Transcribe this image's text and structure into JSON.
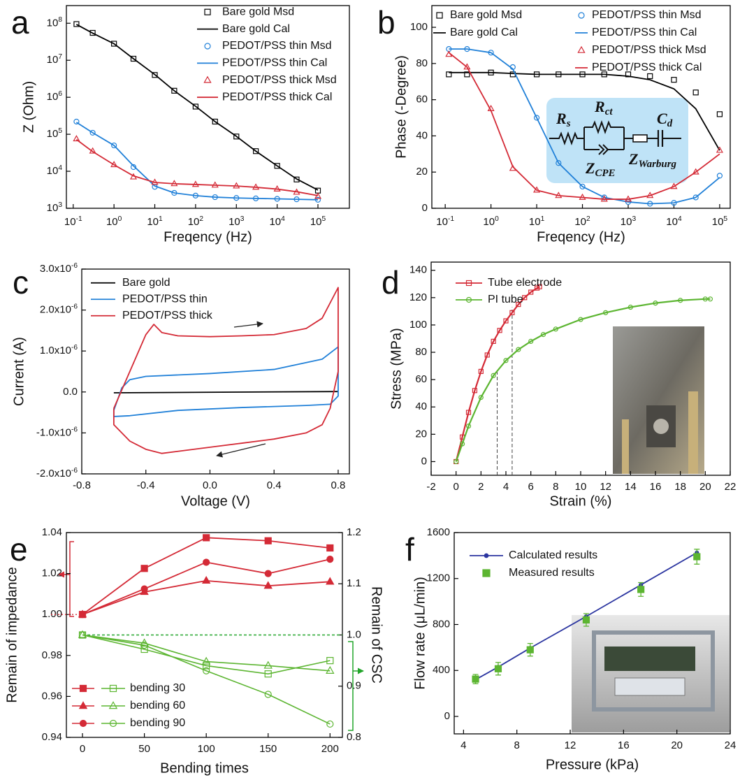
{
  "chart_data": [
    {
      "type": "line",
      "panel": "a",
      "xlabel": "Freqency (Hz)",
      "ylabel": "Z (Ohm)",
      "xscale": "log",
      "yscale": "log",
      "xlim": [
        0.068,
        590000
      ],
      "ylim": [
        1000,
        300000000
      ],
      "xticks": [
        {
          "value": 0.1,
          "label": "10^-1"
        },
        {
          "value": 1,
          "label": "10^0"
        },
        {
          "value": 10,
          "label": "10^1"
        },
        {
          "value": 100,
          "label": "10^2"
        },
        {
          "value": 1000,
          "label": "10^3"
        },
        {
          "value": 10000,
          "label": "10^4"
        },
        {
          "value": 100000,
          "label": "10^5"
        }
      ],
      "yticks": [
        {
          "value": 1000,
          "label": "10^3"
        },
        {
          "value": 10000,
          "label": "10^4"
        },
        {
          "value": 100000,
          "label": "10^5"
        },
        {
          "value": 1000000,
          "label": "10^6"
        },
        {
          "value": 10000000,
          "label": "10^7"
        },
        {
          "value": 100000000,
          "label": "10^8"
        }
      ],
      "legend": "upper right",
      "x": [
        0.12,
        0.3,
        1,
        3,
        10,
        30,
        100,
        300,
        1000,
        3000,
        10000,
        30000,
        100000
      ],
      "series": [
        {
          "name": "Bare gold Msd",
          "color": "#000000",
          "marker": "square",
          "values": [
            95000000,
            55000000,
            28000000,
            11000000,
            4000000,
            1500000,
            560000,
            220000,
            87000,
            35000,
            14000,
            6000,
            3000
          ]
        },
        {
          "name": "Bare gold Cal",
          "color": "#000000",
          "line": true,
          "values": [
            93000000,
            54000000,
            28000000,
            11000000,
            4100000,
            1500000,
            570000,
            220000,
            88000,
            35000,
            14000,
            6200,
            3100
          ]
        },
        {
          "name": "PEDOT/PSS thin Msd",
          "color": "#2080d8",
          "marker": "circle",
          "values": [
            220000,
            110000,
            50000,
            13000,
            3800,
            2600,
            2200,
            2000,
            1900,
            1850,
            1800,
            1750,
            1700
          ]
        },
        {
          "name": "PEDOT/PSS thin Cal",
          "color": "#2080d8",
          "line": true,
          "values": [
            210000,
            110000,
            50000,
            14000,
            4000,
            2600,
            2200,
            2000,
            1900,
            1850,
            1800,
            1750,
            1700
          ]
        },
        {
          "name": "PEDOT/PSS thick Msd",
          "color": "#d42a36",
          "marker": "triangle",
          "values": [
            75000,
            35000,
            15000,
            7000,
            5000,
            4600,
            4400,
            4200,
            4000,
            3700,
            3300,
            2700,
            2100
          ]
        },
        {
          "name": "PEDOT/PSS thick Cal",
          "color": "#d42a36",
          "line": true,
          "values": [
            72000,
            34000,
            15000,
            7500,
            5000,
            4600,
            4400,
            4200,
            4000,
            3700,
            3300,
            2800,
            2200
          ]
        }
      ]
    },
    {
      "type": "line",
      "panel": "b",
      "xlabel": "Freqency (Hz)",
      "ylabel": "Phase (-Degree)",
      "xscale": "log",
      "xlim": [
        0.051,
        170000
      ],
      "ylim": [
        0,
        112
      ],
      "xticks": [
        {
          "value": 0.1,
          "label": "10^-1"
        },
        {
          "value": 1,
          "label": "10^0"
        },
        {
          "value": 10,
          "label": "10^1"
        },
        {
          "value": 100,
          "label": "10^2"
        },
        {
          "value": 1000,
          "label": "10^3"
        },
        {
          "value": 10000,
          "label": "10^4"
        },
        {
          "value": 100000,
          "label": "10^5"
        }
      ],
      "yticks": [
        0,
        20,
        40,
        60,
        80,
        100
      ],
      "legend": "upper right",
      "annotations": [
        "R_s",
        "R_ct",
        "C_d",
        "Z_CPE",
        "Z_Warburg"
      ],
      "x": [
        0.12,
        0.3,
        1,
        3,
        10,
        30,
        100,
        300,
        1000,
        3000,
        10000,
        30000,
        100000
      ],
      "series": [
        {
          "name": "Bare gold Msd",
          "color": "#000000",
          "marker": "square",
          "values": [
            74,
            74,
            75,
            74,
            74,
            74,
            74,
            74,
            74,
            73,
            71,
            64,
            52
          ]
        },
        {
          "name": "Bare gold Cal",
          "color": "#000000",
          "line": true,
          "values": [
            75,
            75,
            75,
            74.5,
            74,
            74,
            74,
            74,
            73,
            71,
            66,
            55,
            32
          ]
        },
        {
          "name": "PEDOT/PSS thin Msd",
          "color": "#2080d8",
          "marker": "circle",
          "values": [
            88,
            88,
            86,
            78,
            50,
            25,
            12,
            6,
            3.5,
            2.5,
            3,
            6,
            18
          ]
        },
        {
          "name": "PEDOT/PSS thin Cal",
          "color": "#2080d8",
          "line": true,
          "values": [
            88,
            88,
            86,
            77,
            50,
            25,
            12,
            6,
            3.5,
            2.5,
            3,
            6,
            17
          ]
        },
        {
          "name": "PEDOT/PSS thick Msd",
          "color": "#d42a36",
          "marker": "triangle",
          "values": [
            85,
            78,
            55,
            22,
            10,
            7,
            6,
            5,
            5,
            7,
            12,
            20,
            32
          ]
        },
        {
          "name": "PEDOT/PSS thick Cal",
          "color": "#d42a36",
          "line": true,
          "values": [
            86,
            78,
            54,
            23,
            10,
            7,
            6,
            5,
            5,
            7,
            12,
            20,
            30
          ]
        }
      ]
    },
    {
      "type": "line",
      "panel": "c",
      "xlabel": "Voltage (V)",
      "ylabel": "Current (A)",
      "xlim": [
        -0.8,
        0.87
      ],
      "ylim": [
        -2e-06,
        3e-06
      ],
      "xticks": [
        -0.8,
        -0.4,
        {
          "value": 0,
          "label": "0.0"
        },
        0.4,
        0.8
      ],
      "yticks": [
        {
          "value": -2e-06,
          "label": "-2.0x10^-6"
        },
        {
          "value": -1e-06,
          "label": "-1.0x10^-6"
        },
        {
          "value": 0,
          "label": "0.0"
        },
        {
          "value": 1e-06,
          "label": "1.0x10^-6"
        },
        {
          "value": 2e-06,
          "label": "2.0x10^-6"
        },
        {
          "value": 3e-06,
          "label": "3.0x10^-6"
        }
      ],
      "legend": "upper left",
      "series": [
        {
          "name": "Bare gold",
          "color": "#000000",
          "line": true,
          "x": [
            -0.6,
            0.8
          ],
          "values": [
            -2e-08,
            1e-08
          ]
        },
        {
          "name": "PEDOT/PSS thin",
          "color": "#2080d8",
          "line": true,
          "x": [
            -0.6,
            -0.55,
            -0.5,
            -0.4,
            0,
            0.4,
            0.7,
            0.8,
            0.8,
            0.75,
            0.6,
            0.2,
            -0.2,
            -0.5,
            -0.6,
            -0.6
          ],
          "values": [
            -4.5e-07,
            1e-07,
            3e-07,
            3.8e-07,
            4.5e-07,
            5.5e-07,
            8e-07,
            1.1e-06,
            -1e-07,
            -3e-07,
            -3.3e-07,
            -3.8e-07,
            -4.5e-07,
            -5.8e-07,
            -6e-07,
            -4.5e-07
          ]
        },
        {
          "name": "PEDOT/PSS thick",
          "color": "#d42a36",
          "line": true,
          "x": [
            -0.6,
            -0.5,
            -0.4,
            -0.35,
            -0.3,
            -0.2,
            0,
            0.2,
            0.4,
            0.6,
            0.7,
            0.8,
            0.8,
            0.75,
            0.7,
            0.6,
            0.4,
            0.2,
            0,
            -0.2,
            -0.3,
            -0.4,
            -0.5,
            -0.6,
            -0.6
          ],
          "values": [
            -4e-07,
            5e-07,
            1.4e-06,
            1.65e-06,
            1.45e-06,
            1.37e-06,
            1.35e-06,
            1.37e-06,
            1.4e-06,
            1.55e-06,
            1.8e-06,
            2.55e-06,
            5e-07,
            -4e-07,
            -8e-07,
            -1e-06,
            -1.15e-06,
            -1.25e-06,
            -1.35e-06,
            -1.45e-06,
            -1.5e-06,
            -1.4e-06,
            -1.2e-06,
            -8e-07,
            -4e-07
          ]
        }
      ]
    },
    {
      "type": "line",
      "panel": "d",
      "xlabel": "Strain (%)",
      "ylabel": "Stress (MPa)",
      "xlim": [
        -2,
        22
      ],
      "ylim": [
        -10,
        146
      ],
      "xticks": [
        -2,
        0,
        2,
        4,
        6,
        8,
        10,
        12,
        14,
        16,
        18,
        20,
        22
      ],
      "yticks": [
        0,
        20,
        40,
        60,
        80,
        100,
        120,
        140
      ],
      "legend": "upper left",
      "guides": {
        "x": [
          3.3,
          4.5
        ],
        "y": [
          67,
          113
        ]
      },
      "series": [
        {
          "name": "Tube electrode",
          "color": "#d42a36",
          "marker": "square",
          "line": true,
          "x": [
            0,
            0.5,
            1,
            1.5,
            2,
            2.5,
            3,
            3.5,
            4,
            4.5,
            5,
            5.5,
            6,
            6.5,
            6.7
          ],
          "values": [
            0,
            18,
            36,
            52,
            66,
            78,
            88,
            96,
            103,
            109,
            115,
            120,
            124,
            127,
            128
          ]
        },
        {
          "name": "PI tube",
          "color": "#5cb531",
          "marker": "circle",
          "line": true,
          "x": [
            0,
            0.5,
            1,
            2,
            3,
            4,
            5,
            6,
            7,
            8,
            10,
            12,
            14,
            16,
            18,
            20,
            20.4
          ],
          "values": [
            0,
            13,
            26,
            47,
            63,
            74,
            82,
            88,
            93,
            97,
            104,
            109,
            113,
            116,
            118,
            119,
            119
          ]
        }
      ]
    },
    {
      "type": "line",
      "panel": "e",
      "xlabel": "Bending times",
      "ylabel": "Remain of impedance",
      "y2label": "Remain of CSC",
      "xlim": [
        -13,
        210
      ],
      "ylim": [
        0.94,
        1.04
      ],
      "y2lim": [
        0.8,
        1.2
      ],
      "xticks": [
        0,
        50,
        100,
        150,
        200
      ],
      "yticks": [
        0.94,
        0.96,
        0.98,
        {
          "value": 1,
          "label": "1.00"
        },
        1.02,
        1.04
      ],
      "y2ticks": [
        0.8,
        0.9,
        {
          "value": 1,
          "label": "1.0"
        },
        1.1,
        1.2
      ],
      "legend": "lower left",
      "x": [
        0,
        50,
        100,
        150,
        200
      ],
      "series": [
        {
          "name": "bending 30",
          "marker": "square",
          "line": true,
          "color": "#d42a36",
          "y2_color": "#5cb531",
          "values": [
            1.0,
            1.0225,
            1.0375,
            1.036,
            1.0325
          ],
          "y2_values": [
            1.0,
            0.972,
            0.94,
            0.924,
            0.95
          ]
        },
        {
          "name": "bending 60",
          "marker": "triangle",
          "line": true,
          "color": "#d42a36",
          "y2_color": "#5cb531",
          "values": [
            1.0,
            1.011,
            1.0165,
            1.014,
            1.016
          ],
          "y2_values": [
            1.0,
            0.984,
            0.948,
            0.94,
            0.93
          ]
        },
        {
          "name": "bending 90",
          "marker": "circle",
          "line": true,
          "color": "#d42a36",
          "y2_color": "#5cb531",
          "values": [
            1.0,
            1.0125,
            1.0255,
            1.02,
            1.027
          ],
          "y2_values": [
            1.0,
            0.98,
            0.93,
            0.884,
            0.826
          ]
        }
      ]
    },
    {
      "type": "line",
      "panel": "f",
      "xlabel": "Pressure (kPa)",
      "ylabel": "Flow rate (μL/min)",
      "xlim": [
        3.3,
        24
      ],
      "ylim": [
        -152,
        1600
      ],
      "xticks": [
        4,
        8,
        12,
        16,
        20,
        24
      ],
      "yticks": [
        0,
        400,
        800,
        1200,
        1600
      ],
      "legend": "upper left",
      "series": [
        {
          "name": "Calculated results",
          "color": "#2b35a0",
          "marker": "dot",
          "line": true,
          "x": [
            4.9,
            6.6,
            9.0,
            13.2,
            17.3,
            21.5
          ],
          "values": [
            320,
            430,
            595,
            870,
            1145,
            1425
          ]
        },
        {
          "name": "Measured results",
          "color": "#5cb531",
          "marker": "square",
          "filled": true,
          "x": [
            4.9,
            6.6,
            9.0,
            13.2,
            17.3,
            21.5
          ],
          "values": [
            325,
            415,
            580,
            840,
            1105,
            1390
          ],
          "errors": [
            40,
            55,
            55,
            55,
            60,
            65
          ]
        }
      ]
    }
  ]
}
